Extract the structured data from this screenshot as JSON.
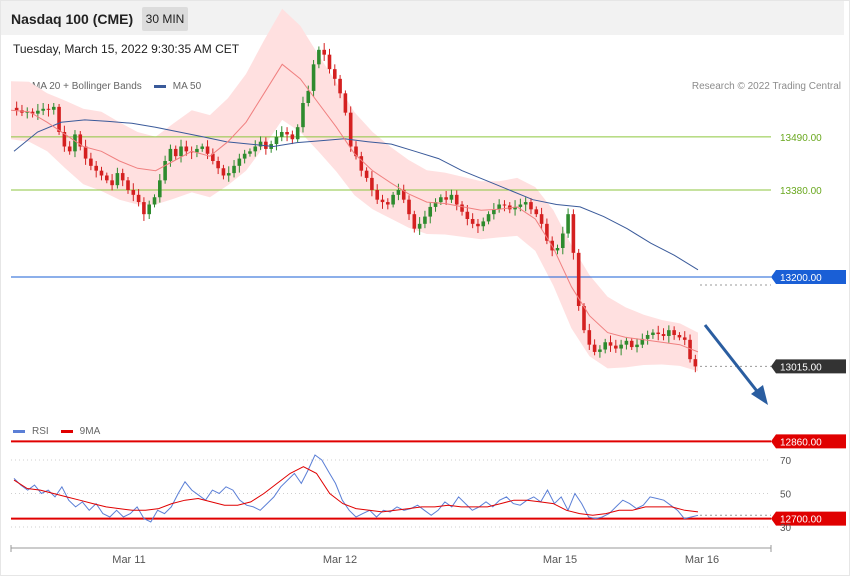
{
  "header": {
    "title": "Nasdaq 100 (CME)",
    "timeframe": "30 MIN"
  },
  "date_line": "Tuesday, March 15, 2022 9:30:35 AM CET",
  "legend_main": [
    {
      "label": "MA 20 + Bollinger Bands",
      "color": "#f08080"
    },
    {
      "label": "MA 50",
      "color": "#3a5a9a"
    }
  ],
  "credit": "Research © 2022 Trading Central",
  "legend_rsi": [
    {
      "label": "RSI",
      "color": "#5b7fd6"
    },
    {
      "label": "9MA",
      "color": "#e00000"
    }
  ],
  "chart_data": [
    {
      "type": "candlestick",
      "ylim": [
        12700,
        13700
      ],
      "levels": [
        {
          "value": 13490,
          "label": "13490.00",
          "kind": "resistance",
          "color": "#8dc63f"
        },
        {
          "value": 13380,
          "label": "13380.00",
          "kind": "resistance",
          "color": "#8dc63f"
        },
        {
          "value": 13200,
          "label": "13200.00",
          "kind": "pivot",
          "color": "#1a5fd6"
        },
        {
          "value": 13015,
          "label": "13015.00",
          "kind": "last",
          "color": "#333333"
        },
        {
          "value": 12860,
          "label": "12860.00",
          "kind": "support",
          "color": "#e00000"
        },
        {
          "value": 12700,
          "label": "12700.00",
          "kind": "support",
          "color": "#e00000"
        }
      ],
      "x_ticks": [
        "Mar 11",
        "Mar 12",
        "Mar 15",
        "Mar 16"
      ],
      "series": [
        {
          "kind": "ohlc",
          "path": [
            13550,
            13545,
            13540,
            13542,
            13538,
            13544,
            13548,
            13546,
            13552,
            13500,
            13470,
            13460,
            13495,
            13470,
            13445,
            13430,
            13420,
            13410,
            13400,
            13390,
            13415,
            13400,
            13380,
            13370,
            13355,
            13330,
            13350,
            13365,
            13400,
            13440,
            13465,
            13450,
            13470,
            13460,
            13458,
            13465,
            13470,
            13455,
            13440,
            13425,
            13410,
            13415,
            13430,
            13445,
            13455,
            13460,
            13470,
            13480,
            13465,
            13475,
            13490,
            13500,
            13495,
            13485,
            13510,
            13560,
            13585,
            13640,
            13670,
            13660,
            13630,
            13610,
            13580,
            13540,
            13470,
            13450,
            13420,
            13405,
            13380,
            13360,
            13355,
            13350,
            13370,
            13380,
            13360,
            13330,
            13300,
            13310,
            13325,
            13345,
            13355,
            13365,
            13360,
            13370,
            13350,
            13335,
            13320,
            13310,
            13305,
            13315,
            13330,
            13340,
            13350,
            13348,
            13340,
            13345,
            13350,
            13355,
            13340,
            13330,
            13310,
            13275,
            13255,
            13260,
            13290,
            13330,
            13250,
            13140,
            13090,
            13060,
            13045,
            13050,
            13065,
            13058,
            13052,
            13060,
            13068,
            13055,
            13060,
            13072,
            13080,
            13085,
            13082,
            13078,
            13090,
            13080,
            13075,
            13070,
            13030,
            13015
          ]
        },
        {
          "kind": "ma20",
          "color": "#f08080",
          "values": [
            13545,
            13542,
            13520,
            13495,
            13470,
            13460,
            13440,
            13425,
            13420,
            13440,
            13460,
            13450,
            13480,
            13520,
            13580,
            13640,
            13610,
            13560,
            13510,
            13455,
            13420,
            13395,
            13372,
            13355,
            13352,
            13345,
            13338,
            13340,
            13345,
            13320,
            13260,
            13180,
            13120,
            13085,
            13075,
            13070,
            13065,
            13060,
            13045
          ]
        },
        {
          "kind": "ma50",
          "color": "#3a5a9a",
          "values": [
            13460,
            13500,
            13520,
            13525,
            13522,
            13518,
            13510,
            13500,
            13490,
            13480,
            13475,
            13470,
            13478,
            13482,
            13486,
            13480,
            13475,
            13460,
            13445,
            13420,
            13400,
            13380,
            13360,
            13350,
            13345,
            13325,
            13300,
            13270,
            13245,
            13215
          ]
        },
        {
          "kind": "bollinger",
          "color": "#ffe0e0"
        }
      ]
    },
    {
      "type": "line",
      "ylim": [
        20,
        80
      ],
      "y_ticks": [
        30,
        50,
        70
      ],
      "series": [
        {
          "name": "RSI",
          "color": "#5b7fd6",
          "values": [
            59,
            55,
            52,
            55,
            50,
            52,
            48,
            54,
            46,
            42,
            45,
            40,
            44,
            38,
            36,
            40,
            36,
            38,
            42,
            35,
            33,
            40,
            38,
            42,
            50,
            57,
            52,
            49,
            46,
            52,
            50,
            54,
            52,
            46,
            43,
            42,
            40,
            44,
            48,
            54,
            58,
            62,
            56,
            64,
            73,
            70,
            63,
            56,
            46,
            40,
            36,
            38,
            40,
            36,
            40,
            39,
            42,
            40,
            41,
            43,
            40,
            37,
            40,
            45,
            42,
            48,
            44,
            40,
            42,
            45,
            42,
            46,
            48,
            44,
            43,
            46,
            48,
            45,
            52,
            44,
            48,
            40,
            50,
            44,
            36,
            35,
            36,
            38,
            42,
            46,
            44,
            41,
            43,
            48,
            47,
            46,
            43,
            40,
            35,
            36,
            37
          ]
        },
        {
          "name": "9MA",
          "color": "#e00000",
          "values": [
            58,
            53,
            52,
            50,
            48,
            46,
            44,
            42,
            41,
            40,
            40,
            41,
            44,
            46,
            47,
            45,
            43,
            43,
            45,
            50,
            56,
            62,
            66,
            62,
            50,
            44,
            41,
            40,
            39,
            40,
            41,
            42,
            42,
            43,
            42,
            42,
            42,
            44,
            46,
            46,
            45,
            44,
            40,
            38,
            37,
            38,
            40,
            40,
            42,
            42,
            42,
            40,
            39
          ]
        }
      ]
    }
  ]
}
